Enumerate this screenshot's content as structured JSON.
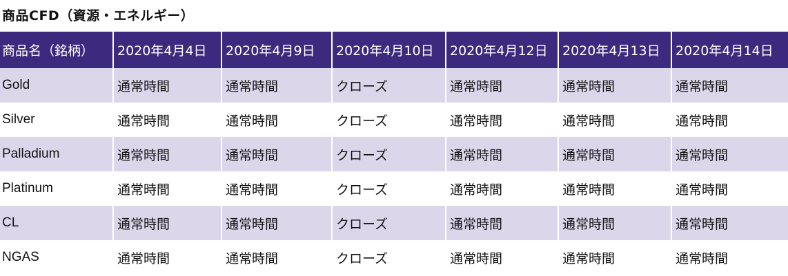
{
  "title": "商品CFD（資源・エネルギー）",
  "table": {
    "headers": [
      "商品名（銘柄）",
      "2020年4月4日",
      "2020年4月9日",
      "2020年4月10日",
      "2020年4月12日",
      "2020年4月13日",
      "2020年4月14日"
    ],
    "rows": [
      [
        "Gold",
        "通常時間",
        "通常時間",
        "クローズ",
        "通常時間",
        "通常時間",
        "通常時間"
      ],
      [
        "Silver",
        "通常時間",
        "通常時間",
        "クローズ",
        "通常時間",
        "通常時間",
        "通常時間"
      ],
      [
        "Palladium",
        "通常時間",
        "通常時間",
        "クローズ",
        "通常時間",
        "通常時間",
        "通常時間"
      ],
      [
        "Platinum",
        "通常時間",
        "通常時間",
        "クローズ",
        "通常時間",
        "通常時間",
        "通常時間"
      ],
      [
        "CL",
        "通常時間",
        "通常時間",
        "クローズ",
        "通常時間",
        "通常時間",
        "通常時間"
      ],
      [
        "NGAS",
        "通常時間",
        "通常時間",
        "クローズ",
        "通常時間",
        "通常時間",
        "通常時間"
      ]
    ]
  },
  "colors": {
    "header_bg": "#3b2a7e",
    "stripe_bg": "#dcd6eb",
    "header_text": "#ffffff"
  }
}
